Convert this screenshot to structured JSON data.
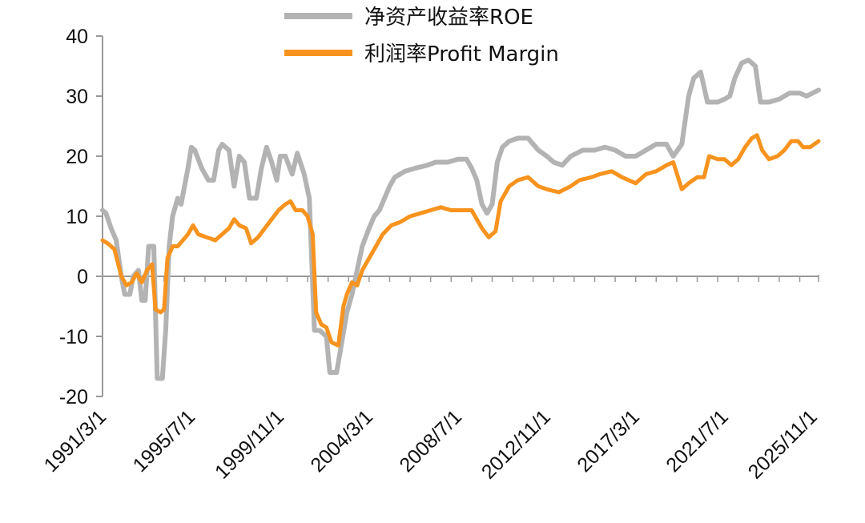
{
  "chart_data": {
    "type": "line",
    "xlabel": "",
    "ylabel": "",
    "x_range": [
      "1991-03",
      "2026-02"
    ],
    "ylim": [
      -20,
      40
    ],
    "y_ticks": [
      40,
      30,
      20,
      10,
      0,
      -10,
      -20
    ],
    "y_tick_labels": [
      "40",
      "30",
      "20",
      "10",
      "0",
      "-10",
      "-20"
    ],
    "x_tick_labels": [
      "1991/3/1",
      "1995/7/1",
      "1999/11/1",
      "2004/3/1",
      "2008/7/1",
      "2012/11/1",
      "2017/3/1",
      "2021/7/1",
      "2025/11/1"
    ],
    "x_tick_values": [
      "1991-03",
      "1995-07",
      "1999-11",
      "2004-03",
      "2008-07",
      "2012-11",
      "2017-03",
      "2021-07",
      "2025-11"
    ],
    "grid": false,
    "legend_position": "top",
    "series": [
      {
        "name": "净资产收益率ROE",
        "color": "#b3b3b3",
        "points": [
          [
            "1991-03",
            11
          ],
          [
            "1991-05",
            10.5
          ],
          [
            "1991-08",
            8
          ],
          [
            "1991-11",
            6
          ],
          [
            "1992-02",
            0
          ],
          [
            "1992-04",
            -3
          ],
          [
            "1992-07",
            -3
          ],
          [
            "1992-09",
            0
          ],
          [
            "1992-12",
            1
          ],
          [
            "1993-02",
            -4
          ],
          [
            "1993-04",
            -4
          ],
          [
            "1993-06",
            5
          ],
          [
            "1993-09",
            5
          ],
          [
            "1993-11",
            -17
          ],
          [
            "1994-02",
            -17
          ],
          [
            "1994-04",
            -9
          ],
          [
            "1994-06",
            5
          ],
          [
            "1994-08",
            10
          ],
          [
            "1994-11",
            13
          ],
          [
            "1995-01",
            12
          ],
          [
            "1995-03",
            15
          ],
          [
            "1995-05",
            18
          ],
          [
            "1995-07",
            21.5
          ],
          [
            "1995-09",
            21
          ],
          [
            "1996-01",
            18
          ],
          [
            "1996-05",
            16
          ],
          [
            "1996-08",
            16
          ],
          [
            "1996-11",
            21
          ],
          [
            "1997-01",
            22
          ],
          [
            "1997-05",
            21
          ],
          [
            "1997-08",
            15
          ],
          [
            "1997-11",
            20
          ],
          [
            "1998-02",
            19
          ],
          [
            "1998-05",
            13
          ],
          [
            "1998-09",
            13
          ],
          [
            "1998-12",
            18
          ],
          [
            "1999-03",
            21.5
          ],
          [
            "1999-06",
            19
          ],
          [
            "1999-09",
            16
          ],
          [
            "1999-11",
            20
          ],
          [
            "2000-02",
            20
          ],
          [
            "2000-06",
            17
          ],
          [
            "2000-09",
            20.5
          ],
          [
            "2001-01",
            17
          ],
          [
            "2001-04",
            13
          ],
          [
            "2001-07",
            -9
          ],
          [
            "2001-10",
            -9
          ],
          [
            "2002-02",
            -10
          ],
          [
            "2002-04",
            -16
          ],
          [
            "2002-08",
            -16
          ],
          [
            "2002-11",
            -11
          ],
          [
            "2003-02",
            -6
          ],
          [
            "2003-05",
            -3
          ],
          [
            "2003-08",
            1
          ],
          [
            "2003-11",
            5
          ],
          [
            "2004-03",
            8
          ],
          [
            "2004-06",
            10
          ],
          [
            "2004-09",
            11
          ],
          [
            "2004-12",
            13
          ],
          [
            "2005-03",
            15
          ],
          [
            "2005-06",
            16.5
          ],
          [
            "2005-09",
            17
          ],
          [
            "2005-12",
            17.5
          ],
          [
            "2006-06",
            18
          ],
          [
            "2007-01",
            18.5
          ],
          [
            "2007-06",
            19
          ],
          [
            "2008-01",
            19
          ],
          [
            "2008-07",
            19.5
          ],
          [
            "2008-12",
            19.5
          ],
          [
            "2009-03",
            18
          ],
          [
            "2009-06",
            16
          ],
          [
            "2009-09",
            12
          ],
          [
            "2009-12",
            10.5
          ],
          [
            "2010-03",
            12
          ],
          [
            "2010-06",
            19
          ],
          [
            "2010-09",
            21.5
          ],
          [
            "2011-01",
            22.5
          ],
          [
            "2011-06",
            23
          ],
          [
            "2011-12",
            23
          ],
          [
            "2012-06",
            21
          ],
          [
            "2012-11",
            20
          ],
          [
            "2013-03",
            19
          ],
          [
            "2013-08",
            18.5
          ],
          [
            "2014-01",
            20
          ],
          [
            "2014-08",
            21
          ],
          [
            "2015-03",
            21
          ],
          [
            "2015-09",
            21.5
          ],
          [
            "2016-03",
            21
          ],
          [
            "2016-09",
            20
          ],
          [
            "2017-03",
            20
          ],
          [
            "2017-09",
            21
          ],
          [
            "2018-03",
            22
          ],
          [
            "2018-09",
            22
          ],
          [
            "2019-01",
            20
          ],
          [
            "2019-06",
            22
          ],
          [
            "2019-10",
            30
          ],
          [
            "2020-01",
            33
          ],
          [
            "2020-05",
            34
          ],
          [
            "2020-09",
            29
          ],
          [
            "2021-03",
            29
          ],
          [
            "2021-07",
            29.5
          ],
          [
            "2021-10",
            30
          ],
          [
            "2022-01",
            33
          ],
          [
            "2022-05",
            35.5
          ],
          [
            "2022-09",
            36
          ],
          [
            "2023-01",
            35
          ],
          [
            "2023-04",
            29
          ],
          [
            "2023-09",
            29
          ],
          [
            "2024-03",
            29.5
          ],
          [
            "2024-09",
            30.5
          ],
          [
            "2025-03",
            30.5
          ],
          [
            "2025-07",
            30
          ],
          [
            "2026-02",
            31
          ]
        ]
      },
      {
        "name": "利润率Profit Margin",
        "color": "#f7931e",
        "points": [
          [
            "1991-03",
            6
          ],
          [
            "1991-06",
            5.5
          ],
          [
            "1991-10",
            4.5
          ],
          [
            "1992-02",
            0
          ],
          [
            "1992-05",
            -1.5
          ],
          [
            "1992-08",
            -1
          ],
          [
            "1992-11",
            0.5
          ],
          [
            "1993-02",
            -1
          ],
          [
            "1993-05",
            1
          ],
          [
            "1993-08",
            2
          ],
          [
            "1993-10",
            -5.5
          ],
          [
            "1994-01",
            -6
          ],
          [
            "1994-03",
            -5.5
          ],
          [
            "1994-05",
            3
          ],
          [
            "1994-08",
            5
          ],
          [
            "1994-11",
            5
          ],
          [
            "1995-02",
            6
          ],
          [
            "1995-05",
            7
          ],
          [
            "1995-08",
            8.5
          ],
          [
            "1995-11",
            7
          ],
          [
            "1996-04",
            6.5
          ],
          [
            "1996-09",
            6
          ],
          [
            "1997-01",
            7
          ],
          [
            "1997-05",
            8
          ],
          [
            "1997-08",
            9.5
          ],
          [
            "1997-11",
            8.5
          ],
          [
            "1998-03",
            8
          ],
          [
            "1998-06",
            5.5
          ],
          [
            "1998-10",
            6.5
          ],
          [
            "1999-02",
            8
          ],
          [
            "1999-06",
            9.5
          ],
          [
            "1999-10",
            11
          ],
          [
            "2000-02",
            12
          ],
          [
            "2000-05",
            12.5
          ],
          [
            "2000-08",
            11
          ],
          [
            "2000-12",
            11
          ],
          [
            "2001-03",
            10
          ],
          [
            "2001-06",
            7
          ],
          [
            "2001-08",
            -6
          ],
          [
            "2001-11",
            -8
          ],
          [
            "2002-02",
            -8.5
          ],
          [
            "2002-05",
            -11
          ],
          [
            "2002-09",
            -11.5
          ],
          [
            "2002-12",
            -5
          ],
          [
            "2003-02",
            -3
          ],
          [
            "2003-05",
            -1
          ],
          [
            "2003-08",
            -1.5
          ],
          [
            "2003-11",
            1
          ],
          [
            "2004-03",
            3
          ],
          [
            "2004-07",
            5
          ],
          [
            "2004-11",
            7
          ],
          [
            "2005-04",
            8.5
          ],
          [
            "2005-09",
            9
          ],
          [
            "2006-03",
            10
          ],
          [
            "2006-09",
            10.5
          ],
          [
            "2007-03",
            11
          ],
          [
            "2007-09",
            11.5
          ],
          [
            "2008-03",
            11
          ],
          [
            "2008-09",
            11
          ],
          [
            "2009-03",
            11
          ],
          [
            "2009-09",
            8
          ],
          [
            "2010-01",
            6.5
          ],
          [
            "2010-05",
            7.5
          ],
          [
            "2010-08",
            12.5
          ],
          [
            "2011-01",
            15
          ],
          [
            "2011-06",
            16
          ],
          [
            "2011-12",
            16.5
          ],
          [
            "2012-06",
            15
          ],
          [
            "2012-11",
            14.5
          ],
          [
            "2013-06",
            14
          ],
          [
            "2014-01",
            15
          ],
          [
            "2014-06",
            16
          ],
          [
            "2015-01",
            16.5
          ],
          [
            "2015-06",
            17
          ],
          [
            "2016-01",
            17.5
          ],
          [
            "2016-07",
            16.5
          ],
          [
            "2017-03",
            15.5
          ],
          [
            "2017-09",
            17
          ],
          [
            "2018-03",
            17.5
          ],
          [
            "2018-09",
            18.5
          ],
          [
            "2019-01",
            19
          ],
          [
            "2019-06",
            14.5
          ],
          [
            "2019-10",
            15.5
          ],
          [
            "2020-03",
            16.5
          ],
          [
            "2020-07",
            16.5
          ],
          [
            "2020-10",
            20
          ],
          [
            "2021-03",
            19.5
          ],
          [
            "2021-07",
            19.5
          ],
          [
            "2021-11",
            18.5
          ],
          [
            "2022-03",
            19.5
          ],
          [
            "2022-07",
            21.5
          ],
          [
            "2022-11",
            23
          ],
          [
            "2023-02",
            23.5
          ],
          [
            "2023-05",
            21
          ],
          [
            "2023-09",
            19.5
          ],
          [
            "2024-02",
            20
          ],
          [
            "2024-06",
            21
          ],
          [
            "2024-10",
            22.5
          ],
          [
            "2025-02",
            22.5
          ],
          [
            "2025-05",
            21.5
          ],
          [
            "2025-09",
            21.5
          ],
          [
            "2026-02",
            22.5
          ]
        ]
      }
    ]
  }
}
